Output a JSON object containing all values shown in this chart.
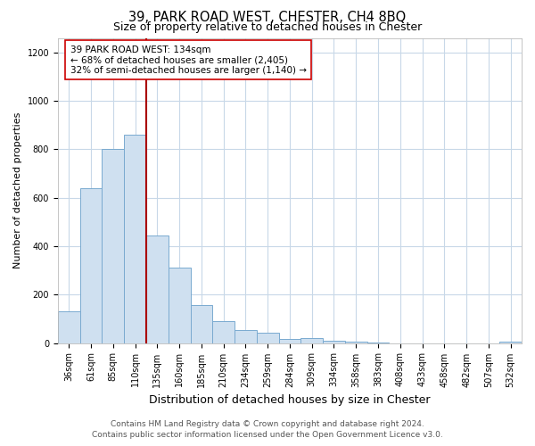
{
  "title": "39, PARK ROAD WEST, CHESTER, CH4 8BQ",
  "subtitle": "Size of property relative to detached houses in Chester",
  "xlabel": "Distribution of detached houses by size in Chester",
  "ylabel": "Number of detached properties",
  "bar_labels": [
    "36sqm",
    "61sqm",
    "85sqm",
    "110sqm",
    "135sqm",
    "160sqm",
    "185sqm",
    "210sqm",
    "234sqm",
    "259sqm",
    "284sqm",
    "309sqm",
    "334sqm",
    "358sqm",
    "383sqm",
    "408sqm",
    "433sqm",
    "458sqm",
    "482sqm",
    "507sqm",
    "532sqm"
  ],
  "bar_values": [
    130,
    640,
    800,
    860,
    445,
    310,
    155,
    90,
    52,
    42,
    15,
    20,
    10,
    5,
    2,
    0,
    0,
    0,
    0,
    0,
    5
  ],
  "bar_color": "#cfe0f0",
  "bar_edge_color": "#7aaad0",
  "marker_line_color": "#aa0000",
  "annotation_title": "39 PARK ROAD WEST: 134sqm",
  "annotation_line1": "← 68% of detached houses are smaller (2,405)",
  "annotation_line2": "32% of semi-detached houses are larger (1,140) →",
  "annotation_box_color": "#ffffff",
  "annotation_box_edge": "#cc0000",
  "ylim": [
    0,
    1260
  ],
  "yticks": [
    0,
    200,
    400,
    600,
    800,
    1000,
    1200
  ],
  "footer_line1": "Contains HM Land Registry data © Crown copyright and database right 2024.",
  "footer_line2": "Contains public sector information licensed under the Open Government Licence v3.0.",
  "grid_color": "#c8d8e8",
  "background_color": "#ffffff",
  "title_fontsize": 10.5,
  "subtitle_fontsize": 9,
  "ylabel_fontsize": 8,
  "xlabel_fontsize": 9,
  "tick_fontsize": 7,
  "annotation_fontsize": 7.5,
  "footer_fontsize": 6.5
}
